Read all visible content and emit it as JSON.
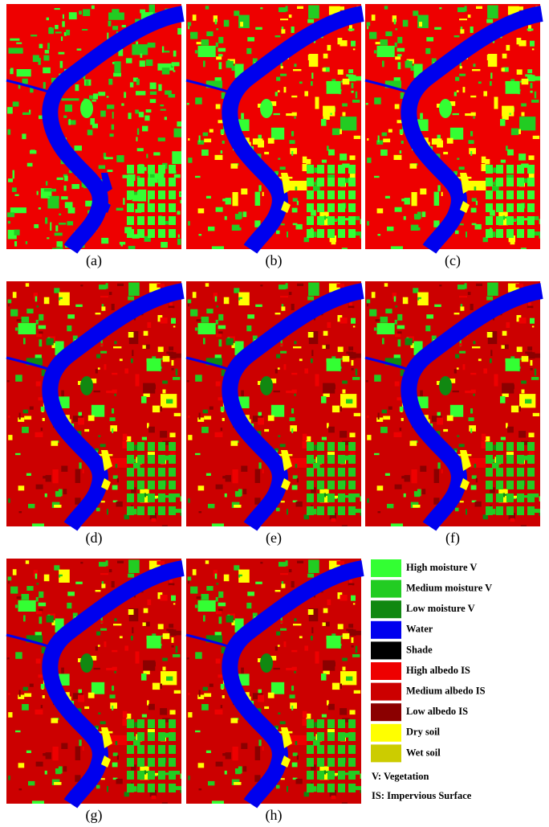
{
  "panels": [
    {
      "label": "(a)"
    },
    {
      "label": "(b)"
    },
    {
      "label": "(c)"
    },
    {
      "label": "(d)"
    },
    {
      "label": "(e)"
    },
    {
      "label": "(f)"
    },
    {
      "label": "(g)"
    },
    {
      "label": "(h)"
    }
  ],
  "legend": {
    "items": [
      {
        "label": "High moisture V",
        "color": "#33ff33"
      },
      {
        "label": "Medium moisture V",
        "color": "#22cc22"
      },
      {
        "label": "Low moisture V",
        "color": "#118811"
      },
      {
        "label": "Water",
        "color": "#0000ee"
      },
      {
        "label": "Shade",
        "color": "#000000"
      },
      {
        "label": "High albedo IS",
        "color": "#ee0000"
      },
      {
        "label": "Medium albedo IS",
        "color": "#cc0000"
      },
      {
        "label": "Low albedo IS",
        "color": "#8b0000"
      },
      {
        "label": "Dry soil",
        "color": "#ffff00"
      },
      {
        "label": "Wet soil",
        "color": "#cccc00"
      }
    ]
  },
  "notes": [
    "V: Vegetation",
    "IS: Impervious Surface"
  ]
}
